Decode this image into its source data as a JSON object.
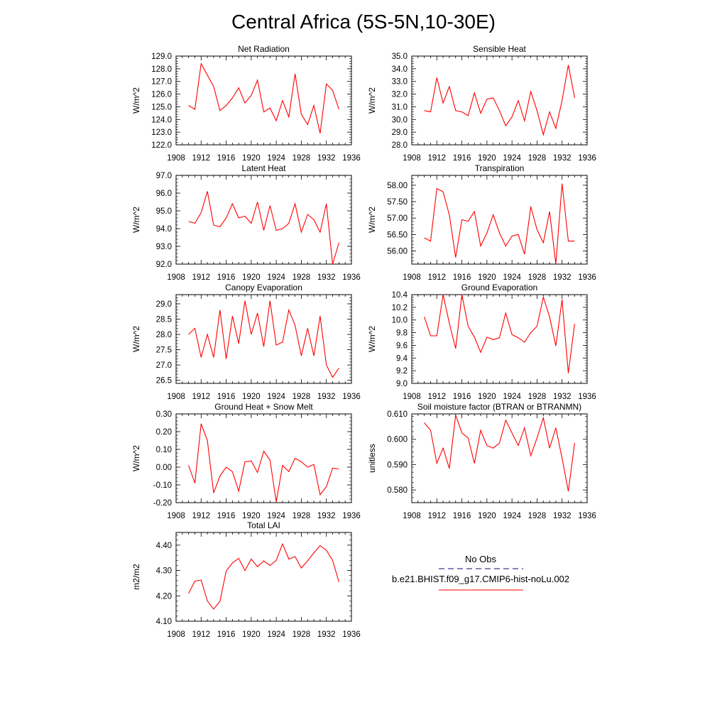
{
  "figure": {
    "title": "Central Africa (5S-5N,10-30E)"
  },
  "legend": {
    "obs_label": "No Obs",
    "model_label": "b.e21.BHIST.f09_g17.CMIP6-hist-noLu.002",
    "obs_color": "#3b3b8f",
    "model_color": "#ff0000"
  },
  "chart_data": [
    {
      "type": "line",
      "title": "Net Radiation",
      "ylabel": "W/m^2",
      "xlim": [
        1908,
        1936
      ],
      "x_ticks": [
        "1908",
        "1912",
        "1916",
        "1920",
        "1924",
        "1928",
        "1932",
        "1936"
      ],
      "ylim": [
        122.0,
        129.0
      ],
      "y_ticks": [
        "122.0",
        "123.0",
        "124.0",
        "125.0",
        "126.0",
        "127.0",
        "128.0",
        "129.0"
      ],
      "x": [
        1910,
        1911,
        1912,
        1913,
        1914,
        1915,
        1916,
        1917,
        1918,
        1919,
        1920,
        1921,
        1922,
        1923,
        1924,
        1925,
        1926,
        1927,
        1928,
        1929,
        1930,
        1931,
        1932,
        1933,
        1934
      ],
      "series": [
        {
          "color": "#ff0000",
          "values": [
            125.1,
            124.8,
            128.4,
            127.5,
            126.6,
            124.7,
            125.1,
            125.7,
            126.5,
            125.3,
            125.9,
            127.1,
            124.6,
            124.9,
            123.9,
            125.5,
            124.2,
            127.6,
            124.4,
            123.6,
            125.1,
            122.9,
            126.8,
            126.3,
            124.8
          ]
        }
      ]
    },
    {
      "type": "line",
      "title": "Sensible Heat",
      "ylabel": "W/m^2",
      "xlim": [
        1908,
        1936
      ],
      "x_ticks": [
        "1908",
        "1912",
        "1916",
        "1920",
        "1924",
        "1928",
        "1932",
        "1936"
      ],
      "ylim": [
        28.0,
        35.0
      ],
      "y_ticks": [
        "28.0",
        "29.0",
        "30.0",
        "31.0",
        "32.0",
        "33.0",
        "34.0",
        "35.0"
      ],
      "x": [
        1910,
        1911,
        1912,
        1913,
        1914,
        1915,
        1916,
        1917,
        1918,
        1919,
        1920,
        1921,
        1922,
        1923,
        1924,
        1925,
        1926,
        1927,
        1928,
        1929,
        1930,
        1931,
        1932,
        1933,
        1934
      ],
      "series": [
        {
          "color": "#ff0000",
          "values": [
            30.7,
            30.6,
            33.3,
            31.3,
            32.6,
            30.7,
            30.6,
            30.3,
            32.1,
            30.5,
            31.6,
            31.7,
            30.7,
            29.5,
            30.2,
            31.5,
            29.9,
            32.2,
            30.7,
            28.8,
            30.6,
            29.3,
            31.5,
            34.3,
            31.7
          ]
        }
      ]
    },
    {
      "type": "line",
      "title": "Latent Heat",
      "ylabel": "W/m^2",
      "xlim": [
        1908,
        1936
      ],
      "x_ticks": [
        "1908",
        "1912",
        "1916",
        "1920",
        "1924",
        "1928",
        "1932",
        "1936"
      ],
      "ylim": [
        92.0,
        97.0
      ],
      "y_ticks": [
        "92.0",
        "93.0",
        "94.0",
        "95.0",
        "96.0",
        "97.0"
      ],
      "x": [
        1910,
        1911,
        1912,
        1913,
        1914,
        1915,
        1916,
        1917,
        1918,
        1919,
        1920,
        1921,
        1922,
        1923,
        1924,
        1925,
        1926,
        1927,
        1928,
        1929,
        1930,
        1931,
        1932,
        1933,
        1934
      ],
      "series": [
        {
          "color": "#ff0000",
          "values": [
            94.4,
            94.3,
            94.9,
            96.1,
            94.2,
            94.1,
            94.6,
            95.4,
            94.6,
            94.7,
            94.3,
            95.5,
            93.9,
            95.3,
            93.9,
            94.0,
            94.3,
            95.4,
            93.8,
            94.8,
            94.5,
            93.8,
            95.4,
            92.0,
            93.2
          ]
        }
      ]
    },
    {
      "type": "line",
      "title": "Transpiration",
      "ylabel": "W/m^2",
      "xlim": [
        1908,
        1936
      ],
      "x_ticks": [
        "1908",
        "1912",
        "1916",
        "1920",
        "1924",
        "1928",
        "1932",
        "1936"
      ],
      "ylim": [
        55.6,
        58.3
      ],
      "y_ticks": [
        "56.00",
        "56.50",
        "57.00",
        "57.50",
        "58.00"
      ],
      "y_tick_values": [
        56.0,
        56.5,
        57.0,
        57.5,
        58.0
      ],
      "x": [
        1910,
        1911,
        1912,
        1913,
        1914,
        1915,
        1916,
        1917,
        1918,
        1919,
        1920,
        1921,
        1922,
        1923,
        1924,
        1925,
        1926,
        1927,
        1928,
        1929,
        1930,
        1931,
        1932,
        1933,
        1934
      ],
      "series": [
        {
          "color": "#ff0000",
          "values": [
            56.4,
            56.3,
            57.9,
            57.8,
            57.1,
            55.8,
            56.95,
            56.9,
            57.2,
            56.15,
            56.55,
            57.1,
            56.55,
            56.15,
            56.45,
            56.5,
            55.9,
            57.35,
            56.65,
            56.25,
            57.2,
            55.6,
            58.05,
            56.3,
            56.3
          ]
        }
      ]
    },
    {
      "type": "line",
      "title": "Canopy Evaporation",
      "ylabel": "W/m^2",
      "xlim": [
        1908,
        1936
      ],
      "x_ticks": [
        "1908",
        "1912",
        "1916",
        "1920",
        "1924",
        "1928",
        "1932",
        "1936"
      ],
      "ylim": [
        26.4,
        29.3
      ],
      "y_ticks": [
        "26.5",
        "27.0",
        "27.5",
        "28.0",
        "28.5",
        "29.0"
      ],
      "y_tick_values": [
        26.5,
        27.0,
        27.5,
        28.0,
        28.5,
        29.0
      ],
      "x": [
        1910,
        1911,
        1912,
        1913,
        1914,
        1915,
        1916,
        1917,
        1918,
        1919,
        1920,
        1921,
        1922,
        1923,
        1924,
        1925,
        1926,
        1927,
        1928,
        1929,
        1930,
        1931,
        1932,
        1933,
        1934
      ],
      "series": [
        {
          "color": "#ff0000",
          "values": [
            28.0,
            28.2,
            27.25,
            28.0,
            27.25,
            28.8,
            27.2,
            28.6,
            27.7,
            29.1,
            28.0,
            28.7,
            27.6,
            29.1,
            27.65,
            27.75,
            28.8,
            28.3,
            27.3,
            28.2,
            27.3,
            28.6,
            27.0,
            26.6,
            26.9
          ]
        }
      ]
    },
    {
      "type": "line",
      "title": "Ground Evaporation",
      "ylabel": "W/m^2",
      "xlim": [
        1908,
        1936
      ],
      "x_ticks": [
        "1908",
        "1912",
        "1916",
        "1920",
        "1924",
        "1928",
        "1932",
        "1936"
      ],
      "ylim": [
        9.0,
        10.4
      ],
      "y_ticks": [
        "9.0",
        "9.2",
        "9.4",
        "9.6",
        "9.8",
        "10.0",
        "10.2",
        "10.4"
      ],
      "x": [
        1910,
        1911,
        1912,
        1913,
        1914,
        1915,
        1916,
        1917,
        1918,
        1919,
        1920,
        1921,
        1922,
        1923,
        1924,
        1925,
        1926,
        1927,
        1928,
        1929,
        1930,
        1931,
        1932,
        1933,
        1934
      ],
      "series": [
        {
          "color": "#ff0000",
          "values": [
            10.05,
            9.75,
            9.75,
            10.4,
            9.95,
            9.55,
            10.4,
            9.9,
            9.73,
            9.49,
            9.73,
            9.69,
            9.72,
            10.11,
            9.77,
            9.72,
            9.65,
            9.8,
            9.9,
            10.36,
            10.05,
            9.59,
            10.32,
            9.16,
            9.94
          ]
        }
      ]
    },
    {
      "type": "line",
      "title": "Ground Heat + Snow Melt",
      "ylabel": "W/m^2",
      "xlim": [
        1908,
        1936
      ],
      "x_ticks": [
        "1908",
        "1912",
        "1916",
        "1920",
        "1924",
        "1928",
        "1932",
        "1936"
      ],
      "ylim": [
        -0.2,
        0.3
      ],
      "y_ticks": [
        "-0.20",
        "-0.10",
        "0.00",
        "0.10",
        "0.20",
        "0.30"
      ],
      "y_tick_values": [
        -0.2,
        -0.1,
        0.0,
        0.1,
        0.2,
        0.3
      ],
      "x": [
        1910,
        1911,
        1912,
        1913,
        1914,
        1915,
        1916,
        1917,
        1918,
        1919,
        1920,
        1921,
        1922,
        1923,
        1924,
        1925,
        1926,
        1927,
        1928,
        1929,
        1930,
        1931,
        1932,
        1933,
        1934
      ],
      "series": [
        {
          "color": "#ff0000",
          "values": [
            0.01,
            -0.09,
            0.245,
            0.15,
            -0.145,
            -0.05,
            0.0,
            -0.025,
            -0.135,
            0.03,
            0.035,
            -0.03,
            0.09,
            0.04,
            -0.195,
            0.01,
            -0.025,
            0.05,
            0.03,
            0.0,
            0.015,
            -0.155,
            -0.11,
            -0.005,
            -0.01
          ]
        }
      ]
    },
    {
      "type": "line",
      "title": "Soil moisture factor (BTRAN or BTRANMN)",
      "ylabel": "unitless",
      "xlim": [
        1908,
        1936
      ],
      "x_ticks": [
        "1908",
        "1912",
        "1916",
        "1920",
        "1924",
        "1928",
        "1932",
        "1936"
      ],
      "ylim": [
        0.575,
        0.61
      ],
      "y_ticks": [
        "0.580",
        "0.590",
        "0.600",
        "0.610"
      ],
      "y_tick_values": [
        0.58,
        0.59,
        0.6,
        0.61
      ],
      "x": [
        1910,
        1911,
        1912,
        1913,
        1914,
        1915,
        1916,
        1917,
        1918,
        1919,
        1920,
        1921,
        1922,
        1923,
        1924,
        1925,
        1926,
        1927,
        1928,
        1929,
        1930,
        1931,
        1932,
        1933,
        1934
      ],
      "series": [
        {
          "color": "#ff0000",
          "values": [
            0.6065,
            0.6035,
            0.5905,
            0.5965,
            0.5885,
            0.6095,
            0.6025,
            0.6005,
            0.5905,
            0.6035,
            0.5975,
            0.5965,
            0.5985,
            0.6075,
            0.6025,
            0.5975,
            0.6045,
            0.5935,
            0.6005,
            0.6085,
            0.5965,
            0.6045,
            0.5925,
            0.5795,
            0.5985
          ]
        }
      ]
    },
    {
      "type": "line",
      "title": "Total LAI",
      "ylabel": "m2/m2",
      "xlim": [
        1908,
        1936
      ],
      "x_ticks": [
        "1908",
        "1912",
        "1916",
        "1920",
        "1924",
        "1928",
        "1932",
        "1936"
      ],
      "ylim": [
        4.1,
        4.45
      ],
      "y_ticks": [
        "4.10",
        "4.20",
        "4.30",
        "4.40"
      ],
      "y_tick_values": [
        4.1,
        4.2,
        4.3,
        4.4
      ],
      "x": [
        1910,
        1911,
        1912,
        1913,
        1914,
        1915,
        1916,
        1917,
        1918,
        1919,
        1920,
        1921,
        1922,
        1923,
        1924,
        1925,
        1926,
        1927,
        1928,
        1929,
        1930,
        1931,
        1932,
        1933,
        1934
      ],
      "series": [
        {
          "color": "#ff0000",
          "values": [
            4.21,
            4.258,
            4.262,
            4.18,
            4.148,
            4.178,
            4.298,
            4.33,
            4.348,
            4.3,
            4.345,
            4.315,
            4.338,
            4.32,
            4.34,
            4.405,
            4.345,
            4.355,
            4.31,
            4.338,
            4.37,
            4.398,
            4.38,
            4.34,
            4.255
          ]
        }
      ]
    }
  ]
}
